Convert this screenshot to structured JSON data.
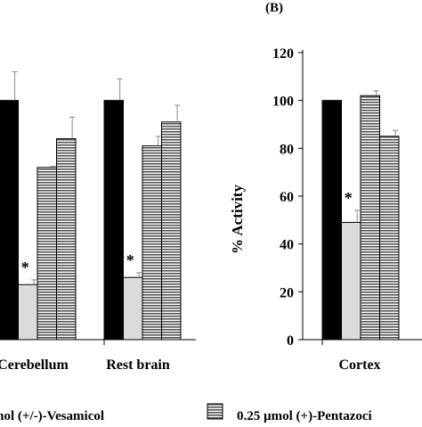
{
  "chart_data": [
    {
      "type": "bar",
      "panel": "",
      "categories": [
        "Cerebellum",
        "Rest brain"
      ],
      "category_labels_shown": [
        "Cerebellum",
        "Rest brain"
      ],
      "series": [
        {
          "values": [
            100,
            100
          ],
          "errors": [
            12,
            9
          ]
        },
        {
          "values": [
            23,
            26
          ],
          "errors": [
            2,
            2
          ]
        },
        {
          "values": [
            72,
            81
          ],
          "errors": [
            0.5,
            4
          ]
        },
        {
          "values": [
            84,
            91
          ],
          "errors": [
            9,
            7
          ]
        }
      ],
      "significance": [
        {
          "series_index": 1,
          "category_index": 0,
          "label": "*"
        },
        {
          "series_index": 1,
          "category_index": 1,
          "label": "*"
        }
      ],
      "ylim": [
        0,
        120
      ]
    },
    {
      "type": "bar",
      "panel": "(B)",
      "categories": [
        "Cortex"
      ],
      "category_labels_shown": [
        "Cortex"
      ],
      "ylabel": "% Activity",
      "yticks": [
        "0",
        "20",
        "40",
        "60",
        "80",
        "100",
        "120"
      ],
      "series": [
        {
          "values": [
            100
          ],
          "errors": [
            0
          ]
        },
        {
          "values": [
            49
          ],
          "errors": [
            5
          ]
        },
        {
          "values": [
            102
          ],
          "errors": [
            2
          ]
        },
        {
          "values": [
            85
          ],
          "errors": [
            2.5
          ]
        }
      ],
      "significance": [
        {
          "series_index": 1,
          "category_index": 0,
          "label": "*"
        }
      ],
      "ylim": [
        0,
        120
      ]
    }
  ],
  "legend": {
    "placement": "bottom",
    "items": [
      {
        "label": "mol (+/-)-Vesamicol"
      },
      {
        "label": "0.25 µmol (+)-Pentazoci"
      }
    ]
  },
  "colors": {
    "series0": "#000000",
    "series1": "#dcdcdc",
    "series2_pattern": "horizontal-lines",
    "series3_pattern": "horizontal-lines",
    "axis": "#000000"
  }
}
